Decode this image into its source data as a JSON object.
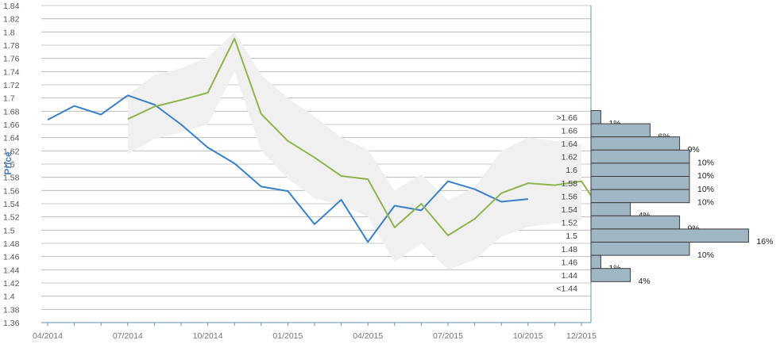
{
  "chart_data": {
    "type": "line",
    "ylabel": "Price",
    "xlabel": "",
    "ylim": [
      1.36,
      1.84
    ],
    "y_ticks": [
      "1.36",
      "1.38",
      "1.4",
      "1.42",
      "1.44",
      "1.46",
      "1.48",
      "1.5",
      "1.52",
      "1.54",
      "1.56",
      "1.58",
      "1.6",
      "1.62",
      "1.64",
      "1.66",
      "1.68",
      "1.7",
      "1.72",
      "1.74",
      "1.76",
      "1.78",
      "1.8",
      "1.82",
      "1.84"
    ],
    "x_tick_labels": [
      "04/2014",
      "07/2014",
      "10/2014",
      "01/2015",
      "04/2015",
      "07/2015",
      "10/2015",
      "12/2015"
    ],
    "grid": true,
    "colors": {
      "actual": "#3a80c8",
      "forecast": "#8fb34d",
      "band": "#f0f0f0",
      "histogram": "#9fb6c4",
      "histogram_border": "#3c3c3c",
      "grid": "#b4b4b4",
      "axis": "#5f93b4"
    },
    "series": [
      {
        "key": "actual",
        "x": [
          "2014-04",
          "2014-05",
          "2014-06",
          "2014-07",
          "2014-08",
          "2014-09",
          "2014-10",
          "2014-11",
          "2014-12",
          "2015-01",
          "2015-02",
          "2015-03",
          "2015-04",
          "2015-05",
          "2015-06",
          "2015-07",
          "2015-08",
          "2015-09",
          "2015-10"
        ],
        "values": [
          1.667,
          1.688,
          1.675,
          1.704,
          1.69,
          1.66,
          1.625,
          1.601,
          1.566,
          1.559,
          1.509,
          1.546,
          1.482,
          1.537,
          1.53,
          1.574,
          1.562,
          1.543,
          1.547
        ]
      },
      {
        "key": "forecast",
        "x": [
          "2014-07",
          "2014-08",
          "2014-09",
          "2014-10",
          "2014-11",
          "2014-12",
          "2015-01",
          "2015-02",
          "2015-03",
          "2015-04",
          "2015-05",
          "2015-06",
          "2015-07",
          "2015-08",
          "2015-09",
          "2015-10",
          "2015-11",
          "2015-12",
          "2015-12b"
        ],
        "values": [
          1.668,
          1.687,
          1.697,
          1.708,
          1.79,
          1.676,
          1.635,
          1.61,
          1.582,
          1.577,
          1.504,
          1.54,
          1.492,
          1.517,
          1.556,
          1.571,
          1.568,
          1.574,
          1.55
        ]
      }
    ],
    "band": {
      "x": [
        "2014-07",
        "2014-08",
        "2014-09",
        "2014-10",
        "2014-11",
        "2014-12",
        "2015-01",
        "2015-02",
        "2015-03",
        "2015-04",
        "2015-05",
        "2015-06",
        "2015-07",
        "2015-08",
        "2015-09",
        "2015-10",
        "2015-11",
        "2015-12"
      ],
      "low": [
        1.615,
        1.638,
        1.648,
        1.66,
        1.74,
        1.62,
        1.578,
        1.548,
        1.538,
        1.52,
        1.452,
        1.48,
        1.44,
        1.455,
        1.49,
        1.505,
        1.51,
        1.515
      ],
      "high": [
        1.705,
        1.735,
        1.745,
        1.762,
        1.8,
        1.735,
        1.7,
        1.672,
        1.64,
        1.622,
        1.56,
        1.585,
        1.545,
        1.565,
        1.62,
        1.64,
        1.635,
        1.63
      ]
    },
    "histogram": {
      "labels": [
        ">1.66",
        "1.66",
        "1.64",
        "1.62",
        "1.6",
        "1.58",
        "1.56",
        "1.54",
        "1.52",
        "1.5",
        "1.48",
        "1.46",
        "1.44",
        "<1.44"
      ],
      "values": [
        1,
        6,
        9,
        10,
        10,
        10,
        10,
        4,
        9,
        16,
        10,
        1,
        4,
        null
      ],
      "pct_labels": [
        "1%",
        "6%",
        "9%",
        "10%",
        "10%",
        "10%",
        "10%",
        "4%",
        "9%",
        "16%",
        "10%",
        "1%",
        "4%",
        ""
      ]
    }
  }
}
